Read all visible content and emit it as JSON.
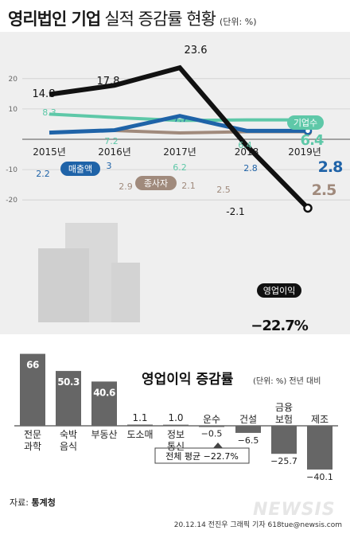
{
  "header": {
    "title_bold": "영리법인 기업",
    "title_light": "실적 증감률 현황",
    "unit": "(단위: %)"
  },
  "source": {
    "label": "자료:",
    "name": "통계청"
  },
  "credit": "20.12.14 전진우 그래픽 기자 618tue@newsis.com",
  "watermark": "NEWSIS",
  "colors": {
    "operating_profit": "#111111",
    "companies": "#5ec8a8",
    "sales": "#1f63a8",
    "employees": "#a08a7c",
    "bar": "#666666",
    "bg": "#efefef",
    "buildings": "#d9d9d9"
  },
  "chart_data": [
    {
      "type": "line",
      "title": "",
      "x": [
        "2015년",
        "2016년",
        "2017년",
        "2018",
        "2019년"
      ],
      "ylim": [
        -25,
        25
      ],
      "yticks": [
        20,
        10,
        -10,
        -20
      ],
      "grid": true,
      "series": [
        {
          "name": "영업이익",
          "key": "op",
          "values": [
            14.8,
            17.8,
            23.6,
            -2.1,
            -22.7
          ],
          "labels": [
            "14.8",
            "17.8",
            "23.6",
            "-2.1",
            "−22.7%"
          ]
        },
        {
          "name": "기업수",
          "key": "companies",
          "values": [
            8.3,
            7.2,
            6.2,
            6.4,
            6.4
          ],
          "labels": [
            "8.3",
            "7.2",
            "6.2",
            "6.4",
            "6.4"
          ]
        },
        {
          "name": "매출액",
          "key": "sales",
          "values": [
            2.2,
            3,
            7.7,
            2.8,
            2.8
          ],
          "labels": [
            "2.2",
            "3",
            "7.7",
            "2.8",
            "2.8"
          ]
        },
        {
          "name": "종사자",
          "key": "employees",
          "values": [
            null,
            2.9,
            2.1,
            2.5,
            2.5
          ],
          "labels": [
            "",
            "2.9",
            "2.1",
            "2.5",
            "2.5"
          ]
        }
      ]
    },
    {
      "type": "bar",
      "title": "영업이익 증감률",
      "unit": "(단위: %) 전년 대비",
      "categories": [
        {
          "lines": [
            "전문",
            "과학"
          ]
        },
        {
          "lines": [
            "숙박",
            "음식"
          ]
        },
        {
          "lines": [
            "부동산"
          ]
        },
        {
          "lines": [
            "도소매"
          ]
        },
        {
          "lines": [
            "정보",
            "통신"
          ]
        },
        {
          "lines": [
            "운수"
          ]
        },
        {
          "lines": [
            "건설"
          ]
        },
        {
          "lines": [
            "금융",
            "보험"
          ]
        },
        {
          "lines": [
            "제조"
          ]
        }
      ],
      "values": [
        66,
        50.3,
        40.6,
        1.1,
        1.0,
        -0.5,
        -6.5,
        -25.7,
        -40.1
      ],
      "labels": [
        "66",
        "50.3",
        "40.6",
        "1.1",
        "1.0",
        "−0.5",
        "−6.5",
        "−25.7",
        "−40.1"
      ],
      "ylim": [
        -45,
        70
      ],
      "average_label": "전체 평균 −22.7%"
    }
  ]
}
